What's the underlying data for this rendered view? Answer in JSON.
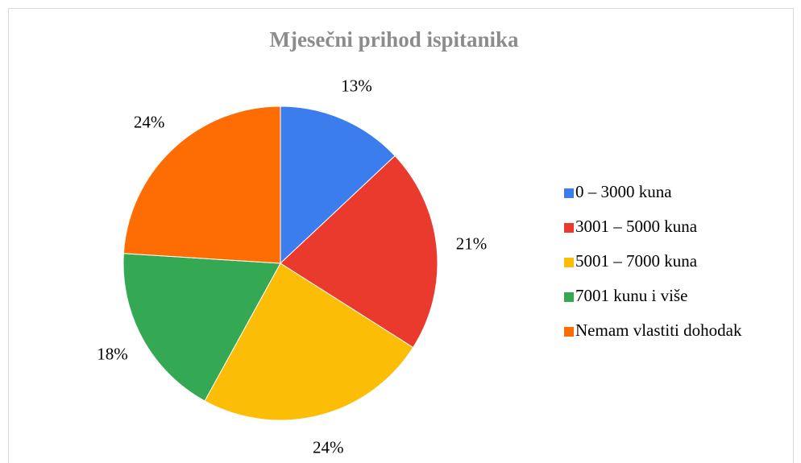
{
  "chart_data": {
    "type": "pie",
    "title": "Mjesečni prihod ispitanika",
    "categories": [
      "0 – 3000 kuna",
      "3001 – 5000 kuna",
      "5001 – 7000 kuna",
      "7001 kunu i više",
      "Nemam vlastiti dohodak"
    ],
    "values": [
      13,
      21,
      24,
      18,
      24
    ],
    "value_labels": [
      "13%",
      "21%",
      "24%",
      "18%",
      "24%"
    ],
    "colors": [
      "#3b7ded",
      "#ea3a2e",
      "#fbbd06",
      "#34a853",
      "#fe6d04"
    ],
    "legend": "right"
  }
}
